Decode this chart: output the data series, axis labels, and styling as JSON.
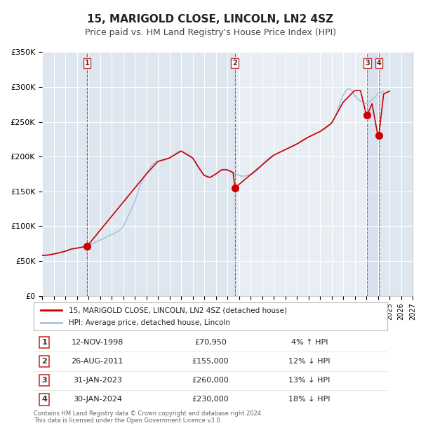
{
  "title": "15, MARIGOLD CLOSE, LINCOLN, LN2 4SZ",
  "subtitle": "Price paid vs. HM Land Registry's House Price Index (HPI)",
  "xlabel": "",
  "ylabel": "",
  "xlim": [
    1995,
    2027
  ],
  "ylim": [
    0,
    350000
  ],
  "yticks": [
    0,
    50000,
    100000,
    150000,
    200000,
    250000,
    300000,
    350000
  ],
  "ytick_labels": [
    "£0",
    "£50K",
    "£100K",
    "£150K",
    "£200K",
    "£250K",
    "£300K",
    "£350K"
  ],
  "xtick_years": [
    1995,
    1996,
    1997,
    1998,
    1999,
    2000,
    2001,
    2002,
    2003,
    2004,
    2005,
    2006,
    2007,
    2008,
    2009,
    2010,
    2011,
    2012,
    2013,
    2014,
    2015,
    2016,
    2017,
    2018,
    2019,
    2020,
    2021,
    2022,
    2023,
    2024,
    2025,
    2026,
    2027
  ],
  "hpi_color": "#a8c4e0",
  "price_color": "#cc0000",
  "sale_marker_color": "#cc0000",
  "background_color": "#f0f4f8",
  "plot_bg_color": "#e8eef4",
  "grid_color": "#ffffff",
  "title_fontsize": 11,
  "subtitle_fontsize": 9,
  "legend_label_price": "15, MARIGOLD CLOSE, LINCOLN, LN2 4SZ (detached house)",
  "legend_label_hpi": "HPI: Average price, detached house, Lincoln",
  "transactions": [
    {
      "num": 1,
      "date": "12-NOV-1998",
      "price": 70950,
      "pct": "4%",
      "dir": "↑",
      "year": 1998.87
    },
    {
      "num": 2,
      "date": "26-AUG-2011",
      "price": 155000,
      "pct": "12%",
      "dir": "↓",
      "year": 2011.65
    },
    {
      "num": 3,
      "date": "31-JAN-2023",
      "price": 260000,
      "pct": "13%",
      "dir": "↓",
      "year": 2023.08
    },
    {
      "num": 4,
      "date": "30-JAN-2024",
      "price": 230000,
      "pct": "18%",
      "dir": "↓",
      "year": 2024.08
    }
  ],
  "footnote": "Contains HM Land Registry data © Crown copyright and database right 2024.\nThis data is licensed under the Open Government Licence v3.0.",
  "hpi_data": {
    "years": [
      1995.0,
      1995.25,
      1995.5,
      1995.75,
      1996.0,
      1996.25,
      1996.5,
      1996.75,
      1997.0,
      1997.25,
      1997.5,
      1997.75,
      1998.0,
      1998.25,
      1998.5,
      1998.75,
      1999.0,
      1999.25,
      1999.5,
      1999.75,
      2000.0,
      2000.25,
      2000.5,
      2000.75,
      2001.0,
      2001.25,
      2001.5,
      2001.75,
      2002.0,
      2002.25,
      2002.5,
      2002.75,
      2003.0,
      2003.25,
      2003.5,
      2003.75,
      2004.0,
      2004.25,
      2004.5,
      2004.75,
      2005.0,
      2005.25,
      2005.5,
      2005.75,
      2006.0,
      2006.25,
      2006.5,
      2006.75,
      2007.0,
      2007.25,
      2007.5,
      2007.75,
      2008.0,
      2008.25,
      2008.5,
      2008.75,
      2009.0,
      2009.25,
      2009.5,
      2009.75,
      2010.0,
      2010.25,
      2010.5,
      2010.75,
      2011.0,
      2011.25,
      2011.5,
      2011.75,
      2012.0,
      2012.25,
      2012.5,
      2012.75,
      2013.0,
      2013.25,
      2013.5,
      2013.75,
      2014.0,
      2014.25,
      2014.5,
      2014.75,
      2015.0,
      2015.25,
      2015.5,
      2015.75,
      2016.0,
      2016.25,
      2016.5,
      2016.75,
      2017.0,
      2017.25,
      2017.5,
      2017.75,
      2018.0,
      2018.25,
      2018.5,
      2018.75,
      2019.0,
      2019.25,
      2019.5,
      2019.75,
      2020.0,
      2020.25,
      2020.5,
      2020.75,
      2021.0,
      2021.25,
      2021.5,
      2021.75,
      2022.0,
      2022.25,
      2022.5,
      2022.75,
      2023.0,
      2023.25,
      2023.5,
      2023.75,
      2024.0,
      2024.25,
      2024.5
    ],
    "values": [
      58000,
      58500,
      59000,
      59500,
      60000,
      61000,
      62000,
      63000,
      64000,
      65500,
      67000,
      68000,
      68500,
      69000,
      70000,
      71000,
      72000,
      74000,
      76000,
      78000,
      80000,
      82000,
      84000,
      86000,
      88000,
      90000,
      92000,
      95000,
      99000,
      108000,
      117000,
      126000,
      135000,
      148000,
      160000,
      168000,
      175000,
      182000,
      188000,
      192000,
      193000,
      194000,
      195000,
      196000,
      198000,
      201000,
      204000,
      207000,
      208000,
      206000,
      204000,
      202000,
      198000,
      193000,
      185000,
      178000,
      173000,
      171000,
      170000,
      172000,
      175000,
      178000,
      181000,
      182000,
      181000,
      179000,
      177000,
      175000,
      173000,
      172000,
      172000,
      173000,
      174000,
      176000,
      179000,
      183000,
      188000,
      193000,
      197000,
      200000,
      202000,
      204000,
      206000,
      208000,
      210000,
      212000,
      214000,
      216000,
      218000,
      221000,
      224000,
      226000,
      228000,
      230000,
      232000,
      234000,
      236000,
      238000,
      240000,
      244000,
      248000,
      255000,
      265000,
      278000,
      288000,
      295000,
      298000,
      295000,
      288000,
      283000,
      280000,
      278000,
      276000,
      278000,
      282000,
      286000,
      290000,
      292000,
      294000
    ]
  },
  "price_line_data": {
    "years": [
      1995.0,
      1995.5,
      1996.0,
      1996.5,
      1997.0,
      1997.5,
      1998.0,
      1998.5,
      1998.87,
      1998.87,
      2004.0,
      2005.0,
      2006.0,
      2007.0,
      2008.0,
      2008.5,
      2009.0,
      2009.5,
      2010.0,
      2010.5,
      2011.0,
      2011.5,
      2011.65,
      2011.65,
      2014.0,
      2015.0,
      2016.0,
      2017.0,
      2018.0,
      2019.0,
      2020.0,
      2021.0,
      2022.0,
      2022.5,
      2023.0,
      2023.08,
      2023.08,
      2023.5,
      2024.0,
      2024.08,
      2024.08,
      2024.5,
      2025.0
    ],
    "values": [
      58000,
      58500,
      60000,
      62000,
      64000,
      67000,
      68500,
      70000,
      70950,
      70950,
      175000,
      193000,
      198000,
      208000,
      198000,
      185000,
      173000,
      170000,
      175000,
      181000,
      181000,
      177000,
      155000,
      155000,
      188000,
      202000,
      210000,
      218000,
      228000,
      236000,
      248000,
      278000,
      295000,
      295000,
      260000,
      260000,
      260000,
      276000,
      230000,
      230000,
      230000,
      290000,
      294000
    ]
  }
}
